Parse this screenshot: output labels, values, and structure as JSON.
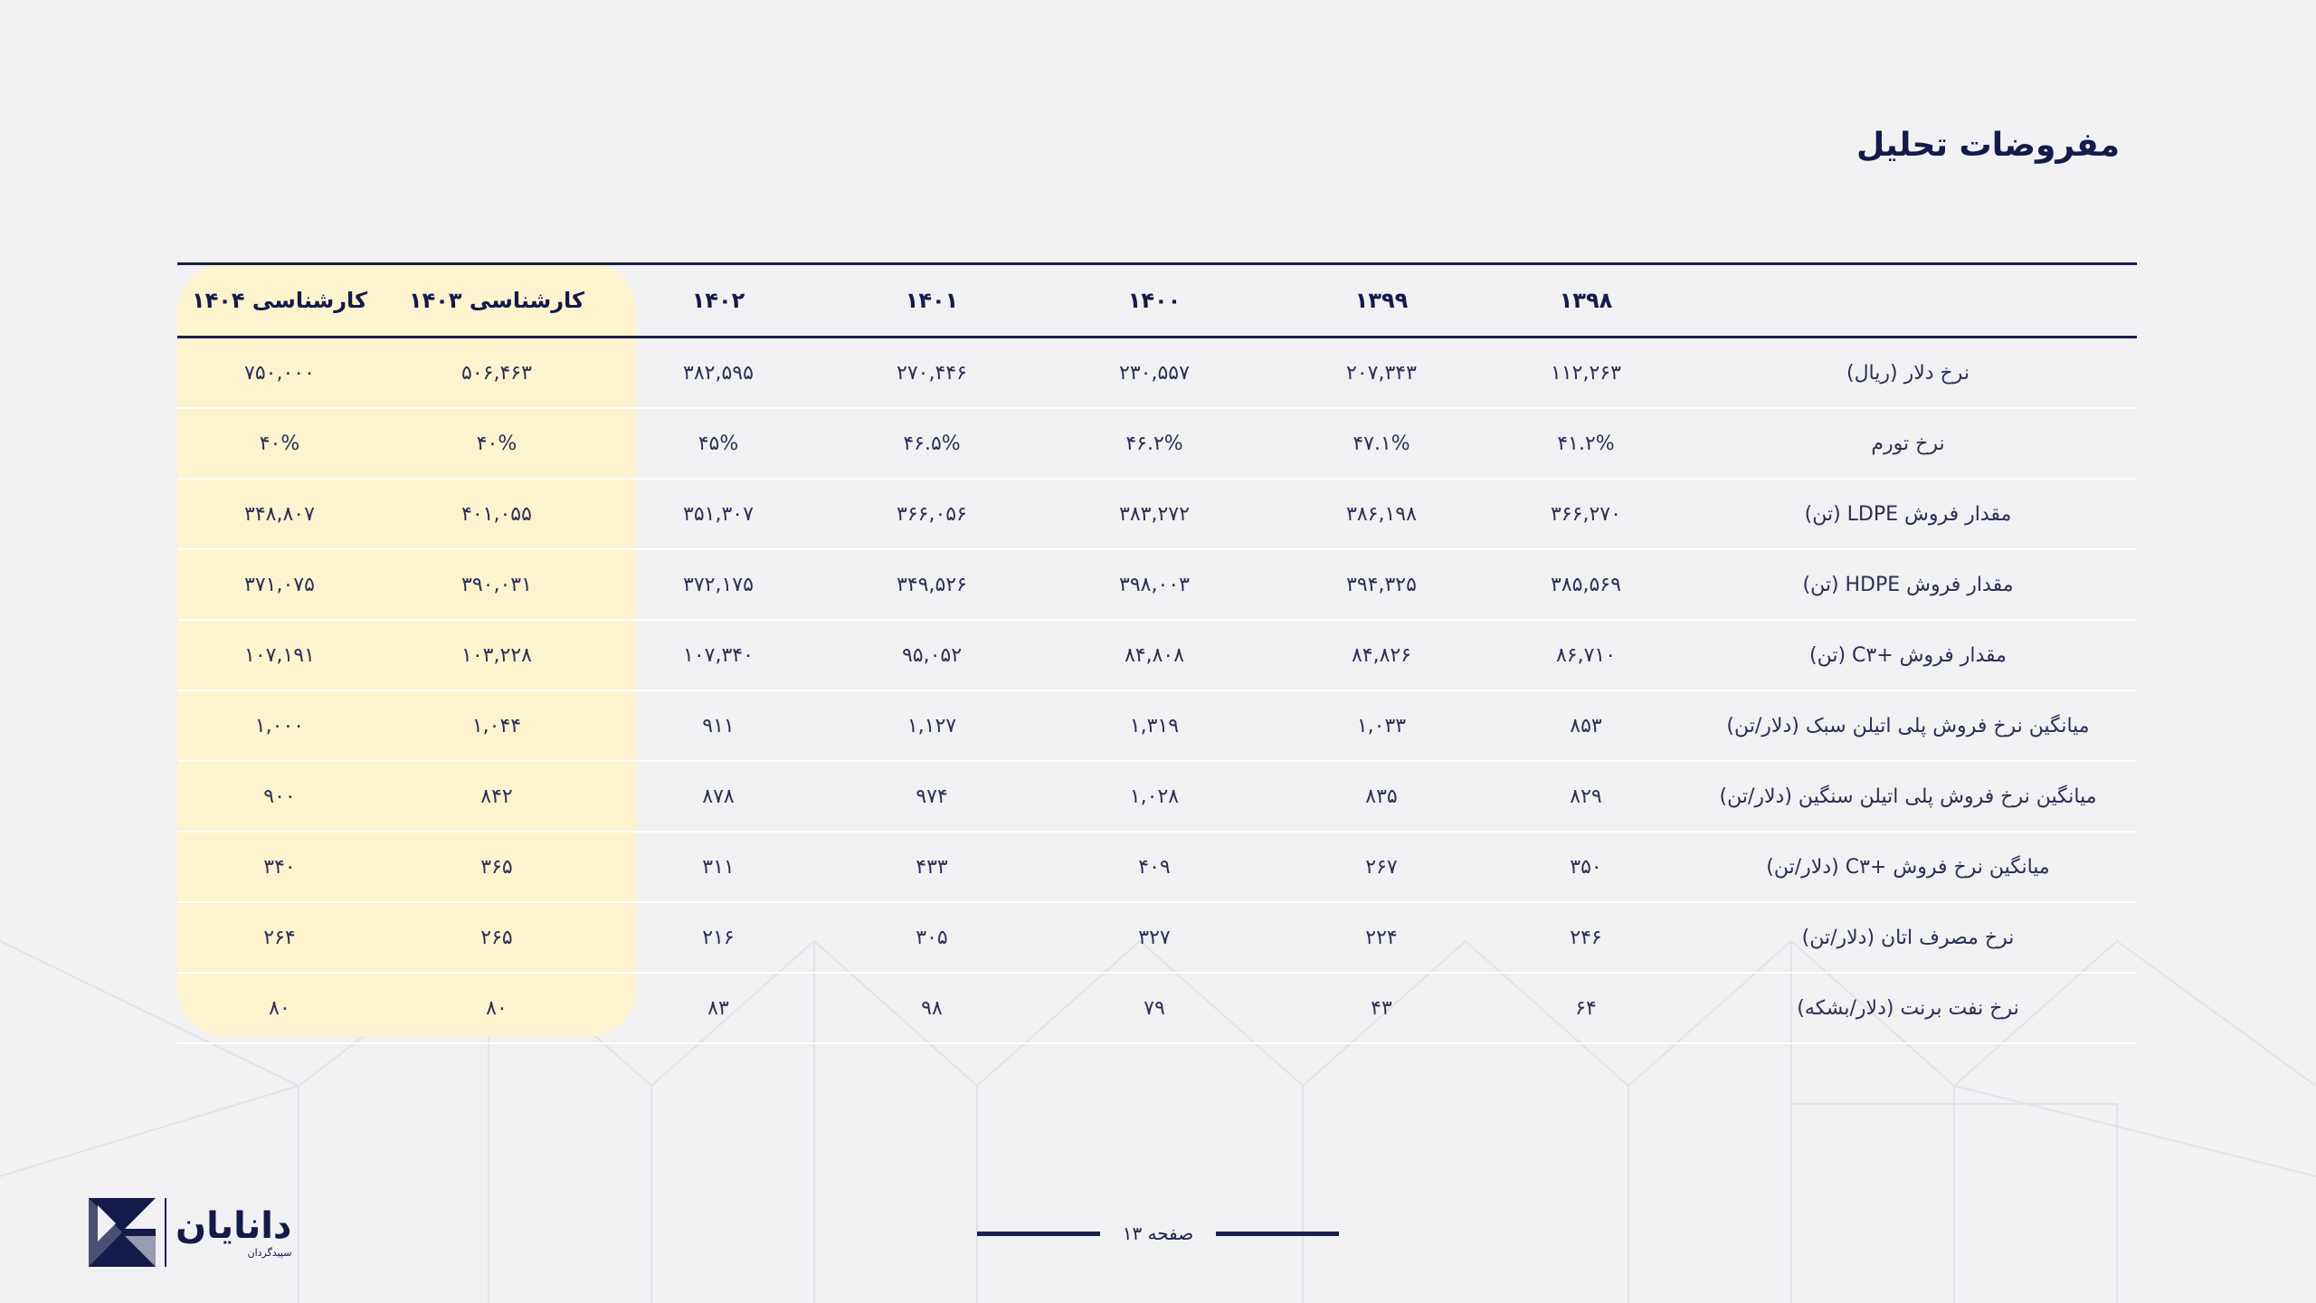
{
  "page": {
    "title": "مفروضات تحلیل",
    "footer": {
      "page_label": "صفحه ۱۳"
    },
    "logo": {
      "name": "دانایان",
      "tagline": "سپیدگردان"
    }
  },
  "table": {
    "headers": [
      "",
      "۱۳۹۸",
      "۱۳۹۹",
      "۱۴۰۰",
      "۱۴۰۱",
      "۱۴۰۲",
      "کارشناسی ۱۴۰۳",
      "کارشناسی ۱۴۰۴"
    ],
    "rows": [
      [
        "نرخ دلار (ریال)",
        "۱۱۲,۲۶۳",
        "۲۰۷,۳۴۳",
        "۲۳۰,۵۵۷",
        "۲۷۰,۴۴۶",
        "۳۸۲,۵۹۵",
        "۵۰۶,۴۶۳",
        "۷۵۰,۰۰۰"
      ],
      [
        "نرخ تورم",
        "۴۱.۲%",
        "۴۷.۱%",
        "۴۶.۲%",
        "۴۶.۵%",
        "۴۵%",
        "۴۰%",
        "۴۰%"
      ],
      [
        "مقدار فروش LDPE (تن)",
        "۳۶۶,۲۷۰",
        "۳۸۶,۱۹۸",
        "۳۸۳,۲۷۲",
        "۳۶۶,۰۵۶",
        "۳۵۱,۳۰۷",
        "۴۰۱,۰۵۵",
        "۳۴۸,۸۰۷"
      ],
      [
        "مقدار فروش HDPE (تن)",
        "۳۸۵,۵۶۹",
        "۳۹۴,۳۲۵",
        "۳۹۸,۰۰۳",
        "۳۴۹,۵۲۶",
        "۳۷۲,۱۷۵",
        "۳۹۰,۰۳۱",
        "۳۷۱,۰۷۵"
      ],
      [
        "مقدار فروش +C۳  (تن)",
        "۸۶,۷۱۰",
        "۸۴,۸۲۶",
        "۸۴,۸۰۸",
        "۹۵,۰۵۲",
        "۱۰۷,۳۴۰",
        "۱۰۳,۲۲۸",
        "۱۰۷,۱۹۱"
      ],
      [
        "میانگین نرخ فروش پلی اتیلن سبک (دلار/تن)",
        "۸۵۳",
        "۱,۰۳۳",
        "۱,۳۱۹",
        "۱,۱۲۷",
        "۹۱۱",
        "۱,۰۴۴",
        "۱,۰۰۰"
      ],
      [
        "میانگین نرخ فروش پلی اتیلن سنگین (دلار/تن)",
        "۸۲۹",
        "۸۳۵",
        "۱,۰۲۸",
        "۹۷۴",
        "۸۷۸",
        "۸۴۲",
        "۹۰۰"
      ],
      [
        "میانگین نرخ فروش +C۳ (دلار/تن)",
        "۳۵۰",
        "۲۶۷",
        "۴۰۹",
        "۴۳۳",
        "۳۱۱",
        "۳۶۵",
        "۳۴۰"
      ],
      [
        "نرخ مصرف اتان (دلار/تن)",
        "۲۴۶",
        "۲۲۴",
        "۳۲۷",
        "۳۰۵",
        "۲۱۶",
        "۲۶۵",
        "۲۶۴"
      ],
      [
        "نرخ نفت برنت (دلار/بشکه)",
        "۶۴",
        "۴۳",
        "۷۹",
        "۹۸",
        "۸۳",
        "۸۰",
        "۸۰"
      ]
    ]
  }
}
